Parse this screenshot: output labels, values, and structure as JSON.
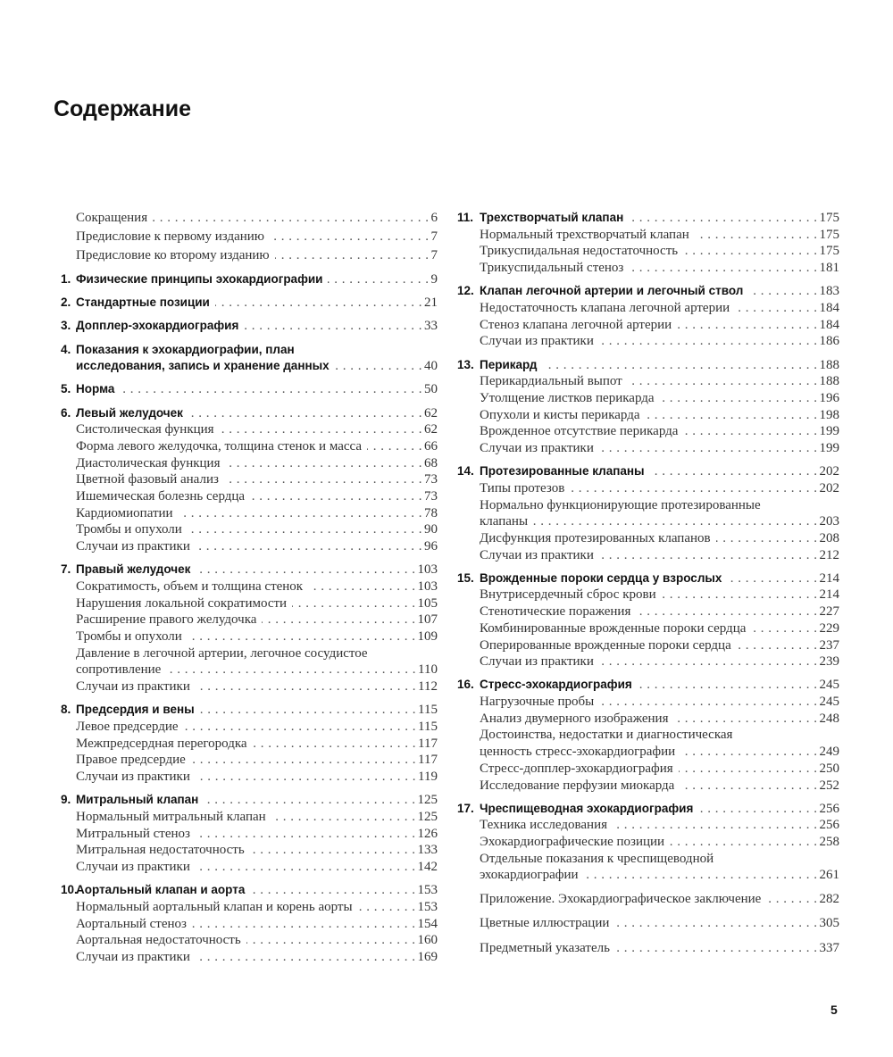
{
  "title": "Содержание",
  "page_number": "5",
  "left_column": {
    "front_matter": [
      {
        "title": [
          "Сокращения"
        ],
        "page": "6"
      },
      {
        "title": [
          "Предисловие к первому изданию"
        ],
        "page": "7"
      },
      {
        "title": [
          "Предисловие ко второму изданию"
        ],
        "page": "7"
      }
    ],
    "chapters": [
      {
        "num": "1.",
        "title": [
          "Физические принципы эхокардиографии"
        ],
        "page": "9",
        "items": []
      },
      {
        "num": "2.",
        "title": [
          "Стандартные позиции"
        ],
        "page": "21",
        "items": []
      },
      {
        "num": "3.",
        "title": [
          "Допплер-эхокардиография"
        ],
        "page": "33",
        "items": []
      },
      {
        "num": "4.",
        "title": [
          "Показания к эхокардиографии, план",
          "исследования, запись и хранение данных"
        ],
        "page": "40",
        "items": []
      },
      {
        "num": "5.",
        "title": [
          "Норма"
        ],
        "page": "50",
        "items": []
      },
      {
        "num": "6.",
        "title": [
          "Левый желудочек"
        ],
        "page": "62",
        "items": [
          {
            "title": [
              "Систолическая функция"
            ],
            "page": "62"
          },
          {
            "title": [
              "Форма левого желудочка, толщина стенок и масса"
            ],
            "page": "66"
          },
          {
            "title": [
              "Диастолическая функция"
            ],
            "page": "68"
          },
          {
            "title": [
              "Цветной фазовый анализ"
            ],
            "page": "73"
          },
          {
            "title": [
              "Ишемическая болезнь сердца"
            ],
            "page": "73"
          },
          {
            "title": [
              "Кардиомиопатии"
            ],
            "page": "78"
          },
          {
            "title": [
              "Тромбы и опухоли"
            ],
            "page": "90"
          },
          {
            "title": [
              "Случаи из практики"
            ],
            "page": "96"
          }
        ]
      },
      {
        "num": "7.",
        "title": [
          "Правый желудочек"
        ],
        "page": "103",
        "items": [
          {
            "title": [
              "Сократимость, объем и толщина стенок"
            ],
            "page": "103"
          },
          {
            "title": [
              "Нарушения локальной сократимости"
            ],
            "page": "105"
          },
          {
            "title": [
              "Расширение правого желудочка"
            ],
            "page": "107"
          },
          {
            "title": [
              "Тромбы и опухоли"
            ],
            "page": "109"
          },
          {
            "title": [
              "Давление в легочной артерии, легочное сосудистое",
              "сопротивление"
            ],
            "page": "110"
          },
          {
            "title": [
              "Случаи из практики"
            ],
            "page": "112"
          }
        ]
      },
      {
        "num": "8.",
        "title": [
          "Предсердия и вены"
        ],
        "page": "115",
        "items": [
          {
            "title": [
              "Левое предсердие"
            ],
            "page": "115"
          },
          {
            "title": [
              "Межпредсердная перегородка"
            ],
            "page": "117"
          },
          {
            "title": [
              "Правое предсердие"
            ],
            "page": "117"
          },
          {
            "title": [
              "Случаи из практики"
            ],
            "page": "119"
          }
        ]
      },
      {
        "num": "9.",
        "title": [
          "Митральный клапан"
        ],
        "page": "125",
        "items": [
          {
            "title": [
              "Нормальный митральный клапан"
            ],
            "page": "125"
          },
          {
            "title": [
              "Митральный стеноз"
            ],
            "page": "126"
          },
          {
            "title": [
              "Митральная недостаточность"
            ],
            "page": "133"
          },
          {
            "title": [
              "Случаи из практики"
            ],
            "page": "142"
          }
        ]
      },
      {
        "num": "10.",
        "title": [
          "Аортальный клапан и аорта"
        ],
        "page": "153",
        "items": [
          {
            "title": [
              "Нормальный аортальный клапан и корень аорты"
            ],
            "page": "153"
          },
          {
            "title": [
              "Аортальный стеноз"
            ],
            "page": "154"
          },
          {
            "title": [
              "Аортальная недостаточность"
            ],
            "page": "160"
          },
          {
            "title": [
              "Случаи из практики"
            ],
            "page": "169"
          }
        ]
      }
    ]
  },
  "right_column": {
    "chapters": [
      {
        "num": "11.",
        "title": [
          "Трехстворчатый клапан"
        ],
        "page": "175",
        "items": [
          {
            "title": [
              "Нормальный трехстворчатый клапан"
            ],
            "page": "175"
          },
          {
            "title": [
              "Трикуспидальная недостаточность"
            ],
            "page": "175"
          },
          {
            "title": [
              "Трикуспидальный стеноз"
            ],
            "page": "181"
          }
        ]
      },
      {
        "num": "12.",
        "title": [
          "Клапан легочной артерии и легочный ствол"
        ],
        "page": "183",
        "items": [
          {
            "title": [
              "Недостаточность клапана легочной артерии"
            ],
            "page": "184"
          },
          {
            "title": [
              "Стеноз клапана легочной артерии"
            ],
            "page": "184"
          },
          {
            "title": [
              "Случаи из практики"
            ],
            "page": "186"
          }
        ]
      },
      {
        "num": "13.",
        "title": [
          "Перикард"
        ],
        "page": "188",
        "items": [
          {
            "title": [
              "Перикардиальный выпот"
            ],
            "page": "188"
          },
          {
            "title": [
              "Утолщение листков перикарда"
            ],
            "page": "196"
          },
          {
            "title": [
              "Опухоли и кисты перикарда"
            ],
            "page": "198"
          },
          {
            "title": [
              "Врожденное отсутствие перикарда"
            ],
            "page": "199"
          },
          {
            "title": [
              "Случаи из практики"
            ],
            "page": "199"
          }
        ]
      },
      {
        "num": "14.",
        "title": [
          "Протезированные клапаны"
        ],
        "page": "202",
        "items": [
          {
            "title": [
              "Типы протезов"
            ],
            "page": "202"
          },
          {
            "title": [
              "Нормально функционирующие протезированные",
              "клапаны"
            ],
            "page": "203"
          },
          {
            "title": [
              "Дисфункция протезированных клапанов"
            ],
            "page": "208"
          },
          {
            "title": [
              "Случаи из практики"
            ],
            "page": "212"
          }
        ]
      },
      {
        "num": "15.",
        "title": [
          "Врожденные пороки сердца у взрослых"
        ],
        "page": "214",
        "items": [
          {
            "title": [
              "Внутрисердечный сброс крови"
            ],
            "page": "214"
          },
          {
            "title": [
              "Стенотические поражения"
            ],
            "page": "227"
          },
          {
            "title": [
              "Комбинированные врожденные пороки сердца"
            ],
            "page": "229"
          },
          {
            "title": [
              "Оперированные врожденные пороки сердца"
            ],
            "page": "237"
          },
          {
            "title": [
              "Случаи из практики"
            ],
            "page": "239"
          }
        ]
      },
      {
        "num": "16.",
        "title": [
          "Стресс-эхокардиография"
        ],
        "page": "245",
        "items": [
          {
            "title": [
              "Нагрузочные пробы"
            ],
            "page": "245"
          },
          {
            "title": [
              "Анализ двумерного изображения"
            ],
            "page": "248"
          },
          {
            "title": [
              "Достоинства, недостатки и диагностическая",
              "ценность стресс-эхокардиографии"
            ],
            "page": "249"
          },
          {
            "title": [
              "Стресс-допплер-эхокардиография"
            ],
            "page": "250"
          },
          {
            "title": [
              "Исследование перфузии миокарда"
            ],
            "page": "252"
          }
        ]
      },
      {
        "num": "17.",
        "title": [
          "Чреспищеводная эхокардиография"
        ],
        "page": "256",
        "items": [
          {
            "title": [
              "Техника исследования"
            ],
            "page": "256"
          },
          {
            "title": [
              "Эхокардиографические позиции"
            ],
            "page": "258"
          },
          {
            "title": [
              "Отдельные показания к чреспищеводной",
              "эхокардиографии"
            ],
            "page": "261"
          }
        ]
      }
    ],
    "back_matter": [
      {
        "title": [
          "Приложение. Эхокардиографическое заключение"
        ],
        "page": "282"
      },
      {
        "title": [
          "Цветные иллюстрации"
        ],
        "page": "305"
      },
      {
        "title": [
          "Предметный указатель"
        ],
        "page": "337"
      }
    ]
  }
}
